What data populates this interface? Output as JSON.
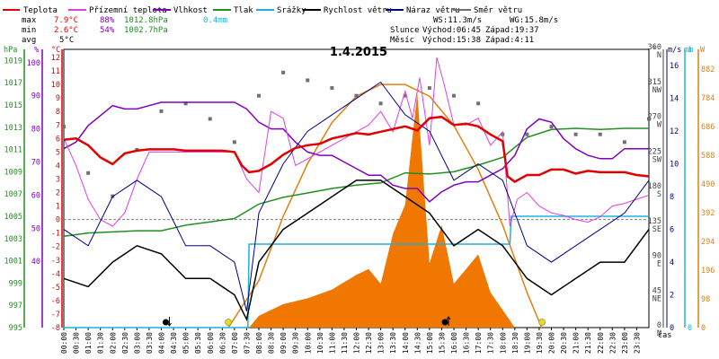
{
  "legend": [
    {
      "label": "Teplota",
      "color": "#e00000"
    },
    {
      "label": "Přízemní teplota",
      "color": "#e040e0"
    },
    {
      "label": "Vlhkost",
      "color": "#8000c0"
    },
    {
      "label": "Tlak",
      "color": "#209020"
    },
    {
      "label": "Srážky",
      "color": "#20b0e0"
    },
    {
      "label": "Rychlost větru",
      "color": "#000000"
    },
    {
      "label": "Náraz větru",
      "color": "#000080"
    },
    {
      "label": "Směr větru",
      "color": "#707070"
    }
  ],
  "stats": {
    "max_label": "max",
    "min_label": "min",
    "avg_label": "avg",
    "max_temp": "7.9°C",
    "max_hum": "88%",
    "max_press": "1012.8hPa",
    "max_rain": "0.4mm",
    "min_temp": "2.6°C",
    "min_hum": "54%",
    "min_press": "1002.7hPa",
    "avg_temp": "5°C"
  },
  "wind_info": {
    "ws": "WS:11.3m/s",
    "wg": "WG:15.8m/s"
  },
  "sun_info": {
    "label": "Slunce",
    "rise": "Východ:06:45",
    "set": "Západ:19:37"
  },
  "moon_info": {
    "label": "Měsíc",
    "rise": "Východ:15:38",
    "set": "Západ:4:11"
  },
  "axis_units": {
    "hpa": "hPa",
    "pct": "%",
    "temp": "°C",
    "deg": "°",
    "ms": "m/s",
    "mm": "mm",
    "w": "W",
    "time": "čas"
  },
  "chart_data": {
    "type": "line",
    "title": "1.4.2015",
    "x_unit": "čas",
    "x_ticks": [
      "00:00",
      "00:30",
      "01:00",
      "01:30",
      "02:00",
      "02:30",
      "03:00",
      "03:30",
      "04:00",
      "04:30",
      "05:00",
      "05:30",
      "06:00",
      "06:30",
      "07:00",
      "07:30",
      "08:00",
      "08:30",
      "09:00",
      "09:30",
      "10:00",
      "10:30",
      "11:00",
      "11:30",
      "12:00",
      "12:30",
      "13:00",
      "13:30",
      "14:00",
      "14:30",
      "15:00",
      "15:30",
      "16:00",
      "16:30",
      "17:00",
      "17:30",
      "18:00",
      "18:30",
      "19:00",
      "19:30",
      "20:00",
      "20:30",
      "21:00",
      "21:30",
      "22:00",
      "22:30",
      "23:00",
      "23:30"
    ],
    "axes": {
      "pressure_hpa": {
        "ticks": [
          995,
          997,
          999,
          1001,
          1003,
          1005,
          1007,
          1009,
          1011,
          1013,
          1015,
          1017,
          1019
        ],
        "range": [
          995,
          1020
        ]
      },
      "humidity_pct": {
        "ticks": [
          40,
          50,
          60,
          70,
          80,
          90,
          100
        ],
        "range": [
          20,
          104
        ]
      },
      "temperature_c": {
        "ticks": [
          -8,
          -7,
          -6,
          -5,
          -4,
          -3,
          -2,
          -1,
          0,
          1,
          2,
          3,
          4,
          5,
          6,
          7,
          8,
          9,
          10,
          11,
          12
        ],
        "range": [
          -8,
          12.6
        ]
      },
      "wind_dir_deg": {
        "ticks": [
          {
            "v": 0,
            "l": "N"
          },
          {
            "v": 45,
            "l": "NE"
          },
          {
            "v": 90,
            "l": "E"
          },
          {
            "v": 135,
            "l": "SE"
          },
          {
            "v": 180,
            "l": "S"
          },
          {
            "v": 225,
            "l": "SW"
          },
          {
            "v": 270,
            "l": "W"
          },
          {
            "v": 315,
            "l": "NW"
          },
          {
            "v": 360,
            "l": "N"
          }
        ],
        "range": [
          0,
          360
        ]
      },
      "wind_ms": {
        "ticks": [
          0,
          2,
          4,
          6,
          8,
          10,
          12,
          14,
          16
        ],
        "range": [
          0,
          17
        ]
      },
      "rain_mm": {
        "ticks": [
          0,
          1
        ],
        "range": [
          0,
          1
        ]
      },
      "solar_w": {
        "ticks": [
          0,
          98,
          196,
          294,
          392,
          490,
          588,
          686,
          784,
          882
        ],
        "range": [
          0,
          950
        ]
      }
    },
    "series": [
      {
        "name": "Teplota",
        "axis": "temperature_c",
        "color": "#e00000",
        "t": [
          0,
          0.5,
          1,
          1.5,
          2,
          2.5,
          3,
          3.5,
          4,
          4.5,
          5,
          5.5,
          6,
          6.5,
          7,
          7.3,
          7.6,
          8,
          8.5,
          9,
          9.5,
          10,
          10.5,
          11,
          11.5,
          12,
          12.5,
          13,
          13.5,
          14,
          14.5,
          15,
          15.5,
          16,
          16.5,
          17,
          17.5,
          18,
          18.2,
          18.5,
          19,
          19.5,
          20,
          20.5,
          21,
          21.5,
          22,
          22.5,
          23,
          23.5,
          24
        ],
        "v": [
          5.9,
          6,
          5.5,
          4.6,
          4.1,
          4.9,
          5.1,
          5.2,
          5.2,
          5.2,
          5.1,
          5.1,
          5.1,
          5.1,
          5,
          4,
          3.5,
          3.6,
          4.1,
          4.8,
          5.3,
          5.5,
          5.6,
          6,
          6.2,
          6.4,
          6.3,
          6.5,
          6.7,
          6.9,
          6.6,
          7.5,
          7.6,
          7,
          7.1,
          6.9,
          6.3,
          5.8,
          3.2,
          2.8,
          3.3,
          3.3,
          3.7,
          3.7,
          3.4,
          3.6,
          3.5,
          3.5,
          3.5,
          3.3,
          3.2
        ]
      },
      {
        "name": "Přízemní teplota",
        "axis": "temperature_c",
        "color": "#e040e0",
        "t": [
          0,
          0.5,
          1,
          1.5,
          2,
          2.5,
          3,
          3.5,
          4,
          4.5,
          5,
          5.5,
          6,
          6.5,
          7,
          7.5,
          8,
          8.5,
          9,
          9.5,
          10,
          10.5,
          11,
          11.5,
          12,
          12.5,
          13,
          13.5,
          14,
          14.3,
          14.6,
          15,
          15.3,
          15.6,
          16,
          16.5,
          17,
          17.5,
          18,
          18.3,
          18.6,
          19,
          19.5,
          20,
          20.5,
          21,
          21.5,
          22,
          22.5,
          23,
          23.5,
          24
        ],
        "v": [
          6,
          4,
          1.5,
          0,
          -0.5,
          0.5,
          3,
          5,
          5,
          5,
          5,
          5,
          5,
          5,
          5,
          3,
          2,
          8,
          7.5,
          4,
          4.5,
          5,
          5.5,
          6,
          6.5,
          7,
          8,
          6.5,
          9.5,
          7.5,
          10.5,
          5.5,
          12,
          10,
          7,
          7,
          7.5,
          5.5,
          6.5,
          -0.5,
          1.5,
          2,
          1,
          0.5,
          0.3,
          0,
          -0.2,
          0.2,
          1,
          1.2,
          1.5,
          1.8
        ]
      },
      {
        "name": "Vlhkost",
        "axis": "humidity_pct",
        "color": "#8000c0",
        "t": [
          0,
          0.5,
          1,
          1.5,
          2,
          2.5,
          3,
          3.5,
          4,
          4.5,
          5,
          5.5,
          6,
          6.5,
          7,
          7.5,
          8,
          8.5,
          9,
          9.5,
          10,
          10.5,
          11,
          11.5,
          12,
          12.5,
          13,
          13.5,
          14,
          14.5,
          15,
          15.5,
          16,
          16.5,
          17,
          17.5,
          18,
          18.5,
          19,
          19.5,
          20,
          20.5,
          21,
          21.5,
          22,
          22.5,
          23,
          23.5,
          24
        ],
        "v": [
          74,
          76,
          81,
          84,
          87,
          86,
          86,
          87,
          88,
          88,
          88,
          88,
          88,
          88,
          88,
          86,
          82,
          80,
          80,
          76,
          73,
          72,
          72,
          70,
          68,
          66,
          66,
          63,
          62,
          62,
          58,
          61,
          63,
          64,
          64,
          66,
          68,
          72,
          80,
          83,
          82,
          77,
          74,
          72,
          71,
          71,
          74,
          74,
          74
        ]
      },
      {
        "name": "Tlak",
        "axis": "pressure_hpa",
        "color": "#209020",
        "t": [
          0,
          1,
          2,
          3,
          4,
          5,
          6,
          7,
          8,
          9,
          10,
          11,
          12,
          13,
          14,
          15,
          16,
          17,
          18,
          19,
          20,
          21,
          22,
          23,
          24
        ],
        "v": [
          1003.2,
          1003.5,
          1003.6,
          1003.7,
          1003.7,
          1004.2,
          1004.5,
          1004.8,
          1006.1,
          1006.7,
          1007.1,
          1007.5,
          1007.8,
          1008,
          1008.9,
          1008.8,
          1009,
          1009.6,
          1010.3,
          1012.1,
          1012.8,
          1012.9,
          1012.8,
          1012.9,
          1012.9
        ]
      },
      {
        "name": "Srážky",
        "axis": "rain_mm",
        "color": "#20b0e0",
        "t": [
          0,
          7.55,
          7.6,
          18.3,
          18.35,
          24
        ],
        "v": [
          0,
          0,
          0.3,
          0.3,
          0.4,
          0.4
        ]
      },
      {
        "name": "Rychlost větru",
        "axis": "wind_ms",
        "color": "#000000",
        "t": [
          0,
          1,
          2,
          3,
          4,
          5,
          6,
          7,
          7.5,
          8,
          9,
          10,
          11,
          12,
          13,
          14,
          15,
          16,
          17,
          18,
          19,
          20,
          21,
          22,
          23,
          24
        ],
        "v": [
          3,
          2.5,
          4,
          5,
          4.5,
          3,
          3,
          2,
          0.5,
          4,
          6,
          7,
          8,
          9,
          9,
          8,
          7,
          5,
          6,
          5,
          3,
          2,
          3,
          4,
          4,
          6
        ]
      },
      {
        "name": "Náraz větru",
        "axis": "wind_ms",
        "color": "#000080",
        "t": [
          0,
          1,
          2,
          3,
          4,
          5,
          6,
          7,
          7.5,
          8,
          9,
          10,
          11,
          12,
          13,
          14,
          15,
          16,
          17,
          18,
          19,
          20,
          21,
          22,
          23,
          24
        ],
        "v": [
          6,
          5,
          8,
          9,
          8,
          5,
          5,
          4,
          1,
          7,
          10,
          12,
          13,
          14,
          15,
          13,
          12,
          9,
          10,
          9,
          5,
          4,
          5,
          6,
          7,
          9
        ]
      },
      {
        "name": "Směr větru",
        "axis": "wind_dir_deg",
        "color": "#707070",
        "t": [
          0,
          1,
          2,
          3,
          4,
          5,
          6,
          7,
          8,
          9,
          10,
          11,
          12,
          13,
          14,
          15,
          16,
          17,
          18,
          19,
          20,
          21,
          22,
          23,
          24
        ],
        "v": [
          260,
          200,
          170,
          230,
          280,
          290,
          270,
          240,
          300,
          330,
          320,
          310,
          300,
          290,
          300,
          310,
          300,
          290,
          250,
          250,
          260,
          250,
          250,
          240,
          270
        ]
      },
      {
        "name": "Solar",
        "axis": "solar_w",
        "color": "#f07800",
        "t": [
          0,
          7.6,
          8,
          9,
          10,
          11,
          12,
          12.5,
          13,
          13.5,
          14,
          14.5,
          15,
          15.5,
          16,
          16.5,
          17,
          17.5,
          18,
          18.5,
          24
        ],
        "v": [
          0,
          0,
          40,
          80,
          100,
          130,
          180,
          200,
          150,
          320,
          420,
          800,
          220,
          350,
          150,
          200,
          250,
          120,
          60,
          0,
          0
        ]
      },
      {
        "name": "Solar theoretical",
        "axis": "solar_w",
        "color": "#e08010",
        "t": [
          6.75,
          8,
          9,
          10,
          11,
          12,
          13,
          14,
          15,
          16,
          17,
          18,
          19,
          19.6
        ],
        "v": [
          0,
          160,
          380,
          560,
          700,
          790,
          830,
          830,
          790,
          690,
          540,
          350,
          120,
          0
        ]
      }
    ],
    "markers": [
      {
        "type": "moonset",
        "t": "4:11",
        "color": "#000000"
      },
      {
        "type": "sunrise",
        "t": "6:45",
        "color": "#f0e000"
      },
      {
        "type": "moonrise",
        "t": "15:38",
        "color": "#000000"
      },
      {
        "type": "sunset",
        "t": "19:37",
        "color": "#f0e000"
      }
    ]
  }
}
